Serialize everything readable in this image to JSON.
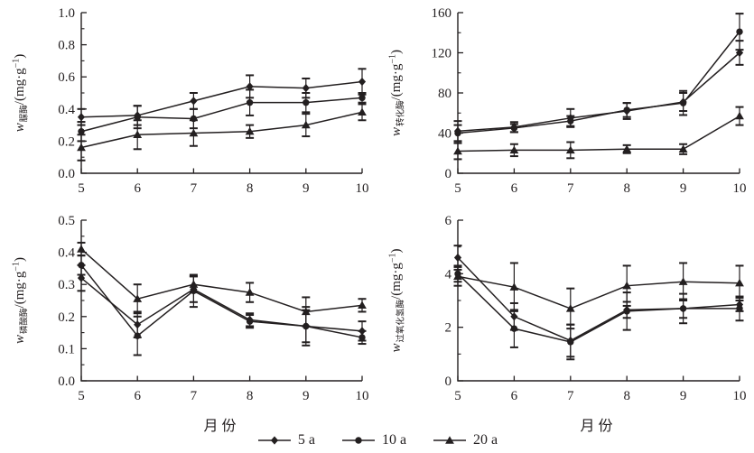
{
  "colors": {
    "line": "#231f20",
    "background": "#ffffff"
  },
  "legend": {
    "items": [
      {
        "label": "5 a",
        "marker": "diamond"
      },
      {
        "label": "10 a",
        "marker": "circle"
      },
      {
        "label": "20 a",
        "marker": "triangle"
      }
    ]
  },
  "chart_data": [
    {
      "type": "line",
      "panel": "top-left",
      "title": "",
      "ylabel": {
        "var": "w",
        "sub": "脲酶",
        "unit": "/(mg·g",
        "exp": "−1",
        "close": ")"
      },
      "xlabel": "",
      "x": [
        5,
        6,
        7,
        8,
        9,
        10
      ],
      "xticks": [
        "5",
        "6",
        "7",
        "8",
        "9",
        "10"
      ],
      "ylim": [
        0,
        1.0
      ],
      "yticks": [
        "0.0",
        "0.2",
        "0.4",
        "0.6",
        "0.8",
        "1.0"
      ],
      "grid": false,
      "series": [
        {
          "name": "5 a",
          "marker": "diamond",
          "values": [
            0.35,
            0.36,
            0.45,
            0.54,
            0.53,
            0.57
          ],
          "errors": [
            0.05,
            0.06,
            0.05,
            0.07,
            0.06,
            0.08
          ]
        },
        {
          "name": "10 a",
          "marker": "circle",
          "values": [
            0.26,
            0.35,
            0.34,
            0.44,
            0.44,
            0.47
          ],
          "errors": [
            0.06,
            0.07,
            0.06,
            0.08,
            0.06,
            0.03
          ]
        },
        {
          "name": "20 a",
          "marker": "triangle",
          "values": [
            0.16,
            0.24,
            0.25,
            0.26,
            0.3,
            0.38
          ],
          "errors": [
            0.08,
            0.09,
            0.08,
            0.04,
            0.07,
            0.05
          ]
        }
      ]
    },
    {
      "type": "line",
      "panel": "top-right",
      "title": "",
      "ylabel": {
        "var": "w",
        "sub": "转化酶",
        "unit": "/(mg·g",
        "exp": "−1",
        "close": ")"
      },
      "xlabel": "",
      "x": [
        5,
        6,
        7,
        8,
        9,
        10
      ],
      "xticks": [
        "5",
        "6",
        "7",
        "8",
        "9",
        "10"
      ],
      "ylim": [
        0,
        160
      ],
      "yticks": [
        "0",
        "40",
        "80",
        "120",
        "160"
      ],
      "grid": false,
      "series": [
        {
          "name": "5 a",
          "marker": "diamond",
          "values": [
            42,
            46,
            55,
            62,
            71,
            120
          ],
          "errors": [
            10,
            5,
            9,
            8,
            9,
            12
          ]
        },
        {
          "name": "10 a",
          "marker": "circle",
          "values": [
            40,
            45,
            52,
            63,
            70,
            141
          ],
          "errors": [
            8,
            4,
            5,
            7,
            12,
            18
          ]
        },
        {
          "name": "20 a",
          "marker": "triangle",
          "values": [
            22,
            23,
            23,
            24,
            24,
            57
          ],
          "errors": [
            8,
            6,
            8,
            4,
            5,
            9
          ]
        }
      ]
    },
    {
      "type": "line",
      "panel": "bottom-left",
      "title": "",
      "ylabel": {
        "var": "w",
        "sub": "磷酸酶",
        "unit": "/(mg·g",
        "exp": "−1",
        "close": ")"
      },
      "xlabel": "月份",
      "x": [
        5,
        6,
        7,
        8,
        9,
        10
      ],
      "xticks": [
        "5",
        "6",
        "7",
        "8",
        "9",
        "10"
      ],
      "ylim": [
        0,
        0.5
      ],
      "yticks": [
        "0.0",
        "0.1",
        "0.2",
        "0.3",
        "0.4",
        "0.5"
      ],
      "grid": false,
      "series": [
        {
          "name": "5 a",
          "marker": "diamond",
          "values": [
            0.32,
            0.175,
            0.285,
            0.19,
            0.17,
            0.155
          ],
          "errors": [
            0.04,
            0.04,
            0.04,
            0.02,
            0.05,
            0.03
          ]
        },
        {
          "name": "10 a",
          "marker": "circle",
          "values": [
            0.36,
            0.14,
            0.28,
            0.185,
            0.17,
            0.135
          ],
          "errors": [
            0.03,
            0.06,
            0.05,
            0.02,
            0.06,
            0.02
          ]
        },
        {
          "name": "20 a",
          "marker": "triangle",
          "values": [
            0.41,
            0.255,
            0.3,
            0.275,
            0.215,
            0.235
          ],
          "errors": [
            0.02,
            0.045,
            0.025,
            0.03,
            0.045,
            0.02
          ]
        }
      ]
    },
    {
      "type": "line",
      "panel": "bottom-right",
      "title": "",
      "ylabel": {
        "var": "w",
        "sub": "过氧化氢酶",
        "unit": "/(mg·g",
        "exp": "−1",
        "close": ")"
      },
      "xlabel": "月份",
      "x": [
        5,
        6,
        7,
        8,
        9,
        10
      ],
      "xticks": [
        "5",
        "6",
        "7",
        "8",
        "9",
        "10"
      ],
      "ylim": [
        0,
        6
      ],
      "yticks": [
        "0",
        "2",
        "4",
        "6"
      ],
      "grid": false,
      "series": [
        {
          "name": "5 a",
          "marker": "diamond",
          "values": [
            4.6,
            2.4,
            1.5,
            2.65,
            2.7,
            2.85
          ],
          "errors": [
            0.45,
            0.5,
            0.6,
            0.3,
            0.35,
            0.25
          ]
        },
        {
          "name": "10 a",
          "marker": "circle",
          "values": [
            4.0,
            1.95,
            1.45,
            2.6,
            2.7,
            2.7
          ],
          "errors": [
            0.3,
            0.7,
            0.65,
            0.7,
            0.55,
            0.45
          ]
        },
        {
          "name": "20 a",
          "marker": "triangle",
          "values": [
            3.9,
            3.5,
            2.7,
            3.55,
            3.7,
            3.65
          ],
          "errors": [
            0.35,
            0.9,
            0.75,
            0.75,
            0.7,
            0.65
          ]
        }
      ]
    }
  ]
}
